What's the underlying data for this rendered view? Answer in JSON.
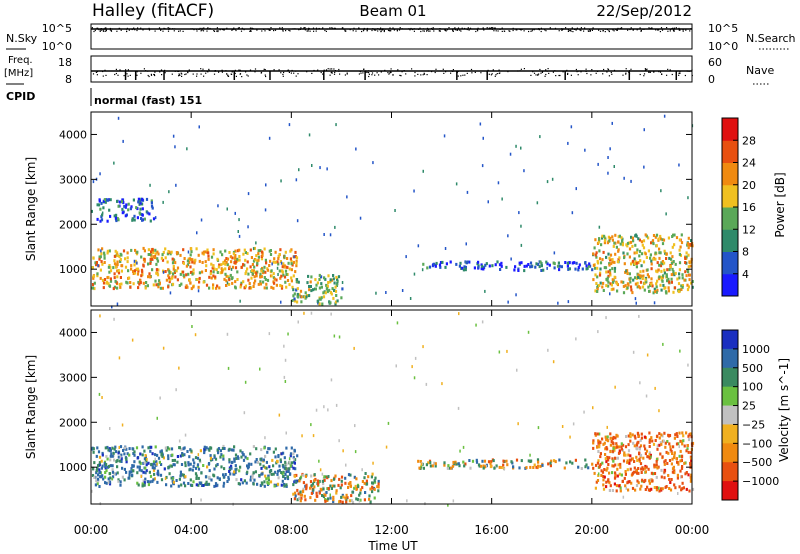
{
  "header": {
    "station": "Halley (fitACF)",
    "beam": "Beam 01",
    "date": "22/Sep/2012"
  },
  "noise_panel": {
    "left_label": "N.Sky",
    "right_label": "N.Search",
    "left_ticks": [
      "10^5",
      "10^0"
    ],
    "right_ticks": [
      "10^5",
      "10^0"
    ]
  },
  "freq_panel": {
    "left_label_1": "Freq.",
    "left_label_2": "[MHz]",
    "right_label": "Nave",
    "left_ticks": [
      "18",
      "8"
    ],
    "right_ticks": [
      "60",
      "0"
    ]
  },
  "cpid": {
    "label": "CPID",
    "value": "normal (fast) 151"
  },
  "colors": {
    "power_scale": [
      "#1a1aff",
      "#2455c8",
      "#2f8a6a",
      "#5aa858",
      "#f0c020",
      "#f08a10",
      "#e85010",
      "#e01010"
    ],
    "velocity_scale": [
      "#1a2fc0",
      "#2f6aa8",
      "#3a8a60",
      "#6ac040",
      "#c0c0c0",
      "#f0b020",
      "#f08a10",
      "#e85010",
      "#e01010"
    ]
  },
  "chart_data": [
    {
      "type": "heatmap",
      "title": "",
      "xlabel": "Time UT",
      "ylabel": "Slant Range [km]",
      "x_ticks": [
        "00:00",
        "04:00",
        "08:00",
        "12:00",
        "16:00",
        "20:00",
        "00:00"
      ],
      "xlim": [
        0,
        24
      ],
      "y_ticks": [
        "1000",
        "2000",
        "3000",
        "4000"
      ],
      "ylim": [
        180,
        4500
      ],
      "colorbar": {
        "label": "Power [dB]",
        "ticks": [
          "4",
          "8",
          "12",
          "16",
          "20",
          "24",
          "28"
        ],
        "range": [
          0,
          32
        ]
      },
      "features": [
        {
          "t0": 0.0,
          "t1": 8.2,
          "r0": 600,
          "r1": 1500,
          "value": 20
        },
        {
          "t0": 8.0,
          "t1": 10.0,
          "r0": 250,
          "r1": 900,
          "value": 14
        },
        {
          "t0": 0.2,
          "t1": 2.5,
          "r0": 2100,
          "r1": 2600,
          "value": 6
        },
        {
          "t0": 13.0,
          "t1": 20.0,
          "r0": 1000,
          "r1": 1200,
          "value": 6
        },
        {
          "t0": 20.0,
          "t1": 24.0,
          "r0": 500,
          "r1": 1800,
          "value": 18
        }
      ]
    },
    {
      "type": "heatmap",
      "title": "",
      "xlabel": "Time UT",
      "ylabel": "Slant Range [km]",
      "x_ticks": [
        "00:00",
        "04:00",
        "08:00",
        "12:00",
        "16:00",
        "20:00",
        "00:00"
      ],
      "xlim": [
        0,
        24
      ],
      "y_ticks": [
        "1000",
        "2000",
        "3000",
        "4000"
      ],
      "ylim": [
        180,
        4500
      ],
      "colorbar": {
        "label": "Velocity [m s^-1]",
        "ticks": [
          "1000",
          "500",
          "100",
          "25",
          "-25",
          "-100",
          "-500",
          "-1000"
        ]
      },
      "features": [
        {
          "t0": 0.0,
          "t1": 8.2,
          "r0": 600,
          "r1": 1500,
          "value": 300
        },
        {
          "t0": 8.0,
          "t1": 11.5,
          "r0": 250,
          "r1": 900,
          "value": -50
        },
        {
          "t0": 13.0,
          "t1": 20.0,
          "r0": 1000,
          "r1": 1200,
          "value": 0
        },
        {
          "t0": 20.0,
          "t1": 24.0,
          "r0": 500,
          "r1": 1800,
          "value": -300
        }
      ]
    }
  ]
}
